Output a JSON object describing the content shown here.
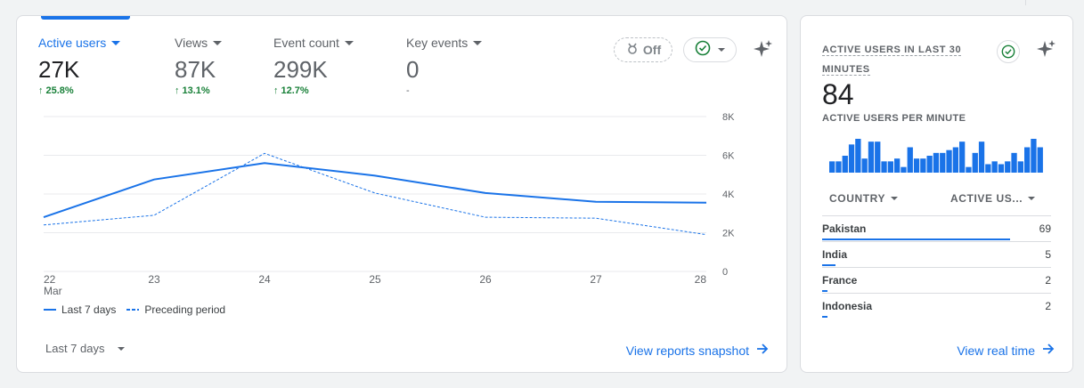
{
  "overview": {
    "metrics": [
      {
        "label": "Active users",
        "value": "27K",
        "change": "25.8%"
      },
      {
        "label": "Views",
        "value": "87K",
        "change": "13.1%"
      },
      {
        "label": "Event count",
        "value": "299K",
        "change": "12.7%"
      },
      {
        "label": "Key events",
        "value": "0",
        "change": "-"
      }
    ],
    "off_chip_label": "Off",
    "legend": {
      "current": "Last 7 days",
      "previous": "Preceding period"
    },
    "date_range": "Last 7 days",
    "link": "View reports snapshot"
  },
  "chart_data": {
    "type": "line",
    "x": [
      "22",
      "23",
      "24",
      "25",
      "26",
      "27",
      "28"
    ],
    "x_sublabel": "Mar",
    "yticks": [
      "0",
      "2K",
      "4K",
      "6K",
      "8K"
    ],
    "ylim": [
      0,
      8000
    ],
    "grid": true,
    "series": [
      {
        "name": "Last 7 days",
        "values": [
          2800,
          4750,
          5600,
          4950,
          4050,
          3600,
          3550
        ],
        "style": "solid"
      },
      {
        "name": "Preceding period",
        "values": [
          2400,
          2900,
          6100,
          4050,
          2800,
          2750,
          1900
        ],
        "style": "dashed"
      }
    ],
    "color": "#1a73e8"
  },
  "realtime": {
    "title": "ACTIVE USERS IN LAST 30 MINUTES",
    "value": "84",
    "subtitle": "ACTIVE USERS PER MINUTE",
    "per_minute": [
      4,
      4,
      6,
      10,
      12,
      5,
      11,
      11,
      4,
      4,
      5,
      2,
      9,
      5,
      5,
      6,
      7,
      7,
      8,
      9,
      11,
      2,
      7,
      11,
      3,
      4,
      3,
      4,
      7,
      4,
      9,
      12,
      9
    ],
    "columns": {
      "country": "COUNTRY",
      "users": "ACTIVE US..."
    },
    "rows": [
      {
        "country": "Pakistan",
        "count": "69",
        "value": 69
      },
      {
        "country": "India",
        "count": "5",
        "value": 5
      },
      {
        "country": "France",
        "count": "2",
        "value": 2
      },
      {
        "country": "Indonesia",
        "count": "2",
        "value": 2
      }
    ],
    "link": "View real time"
  },
  "colors": {
    "accent": "#1a73e8",
    "positive": "#188038",
    "muted": "#5f6368"
  }
}
